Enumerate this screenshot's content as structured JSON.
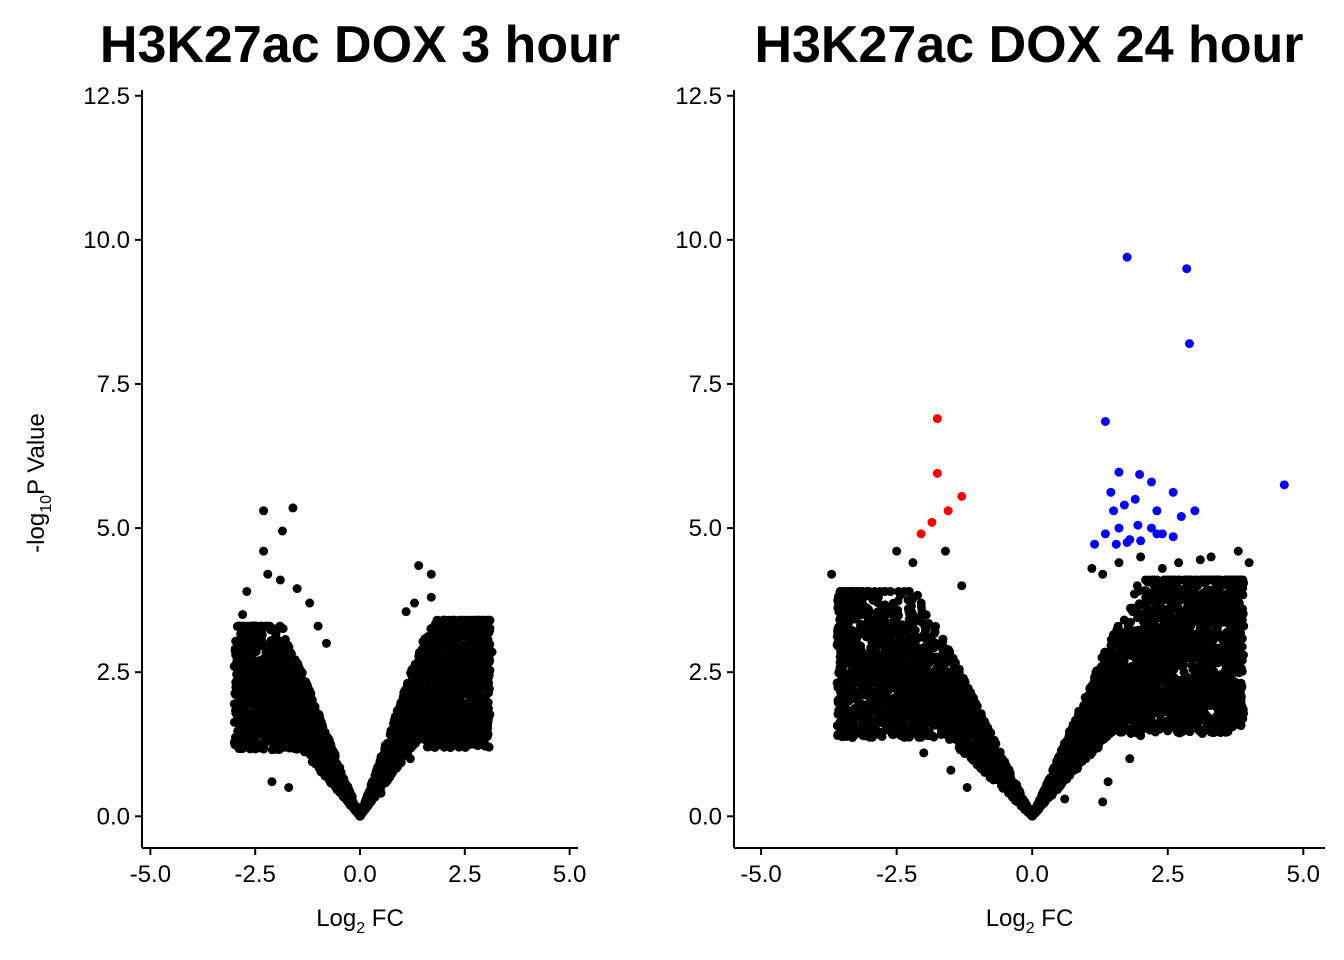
{
  "figure": {
    "ylabel_prefix": "-log",
    "ylabel_sub": "10",
    "ylabel_suffix": "P Value"
  },
  "colors": {
    "points": "#000000",
    "up": "#0000ff",
    "down": "#ff0000",
    "axis": "#000000"
  },
  "chart_data": [
    {
      "type": "scatter",
      "title": "H3K27ac DOX 3 hour",
      "xlabel_prefix": "Log",
      "xlabel_sub": "2",
      "xlabel_suffix": " FC",
      "xlim": [
        -5.2,
        5.2
      ],
      "ylim": [
        -0.55,
        12.6
      ],
      "xticks": [
        -5,
        -2.5,
        0,
        2.5,
        5
      ],
      "xtick_labels": [
        "-5.0",
        "-2.5",
        "0.0",
        "2.5",
        "5.0"
      ],
      "yticks": [
        0,
        2.5,
        5,
        7.5,
        10,
        12.5
      ],
      "ytick_labels": [
        "0.0",
        "2.5",
        "5.0",
        "7.5",
        "10.0",
        "12.5"
      ],
      "grid": false,
      "series": [
        {
          "color": "#000000",
          "points": [
            [
              -2.3,
              5.3
            ],
            [
              -1.6,
              5.35
            ],
            [
              -1.85,
              4.95
            ],
            [
              -2.3,
              4.6
            ],
            [
              -2.2,
              4.2
            ],
            [
              -1.9,
              4.1
            ],
            [
              -1.5,
              3.95
            ],
            [
              -2.7,
              3.9
            ],
            [
              -2.8,
              3.5
            ],
            [
              -2.6,
              3.3
            ],
            [
              -2.9,
              2.9
            ],
            [
              -3.0,
              2.6
            ],
            [
              -2.95,
              2.3
            ],
            [
              -3.0,
              1.95
            ],
            [
              -2.8,
              1.6
            ],
            [
              -2.5,
              1.2
            ],
            [
              -2.1,
              0.6
            ],
            [
              -1.7,
              0.5
            ],
            [
              -1.0,
              3.3
            ],
            [
              -0.8,
              3.0
            ],
            [
              -1.2,
              3.7
            ],
            [
              1.4,
              4.35
            ],
            [
              1.7,
              4.2
            ],
            [
              1.3,
              3.7
            ],
            [
              1.1,
              3.55
            ],
            [
              1.7,
              3.8
            ],
            [
              1.9,
              3.2
            ],
            [
              2.0,
              3.1
            ],
            [
              2.3,
              2.9
            ],
            [
              2.6,
              2.75
            ],
            [
              2.75,
              2.6
            ],
            [
              3.15,
              2.85
            ],
            [
              2.95,
              2.7
            ],
            [
              2.6,
              2.2
            ],
            [
              2.8,
              2.0
            ],
            [
              2.3,
              1.8
            ],
            [
              2.1,
              1.5
            ],
            [
              1.8,
              1.2
            ],
            [
              1.2,
              1.0
            ],
            [
              0.5,
              0.4
            ]
          ]
        }
      ],
      "cloud": [
        {
          "x_min": -3.0,
          "x_max": 0,
          "y_peak": 3.3,
          "rate": 1.1,
          "n": 1600
        },
        {
          "x_min": 0,
          "x_max": 3.1,
          "y_peak": 3.4,
          "rate": 1.25,
          "n": 1700
        }
      ]
    },
    {
      "type": "scatter",
      "title": "H3K27ac DOX 24 hour",
      "xlabel_prefix": "Log",
      "xlabel_sub": "2",
      "xlabel_suffix": " FC",
      "xlim": [
        -5.5,
        5.4
      ],
      "ylim": [
        -0.55,
        12.6
      ],
      "xticks": [
        -5,
        -2.5,
        0,
        2.5,
        5
      ],
      "xtick_labels": [
        "-5.0",
        "-2.5",
        "0.0",
        "2.5",
        "5.0"
      ],
      "yticks": [
        0,
        2.5,
        5,
        7.5,
        10,
        12.5
      ],
      "ytick_labels": [
        "0.0",
        "2.5",
        "5.0",
        "7.5",
        "10.0",
        "12.5"
      ],
      "grid": false,
      "series": [
        {
          "color": "#000000",
          "points": [
            [
              -3.7,
              4.2
            ],
            [
              -3.4,
              3.85
            ],
            [
              -3.3,
              3.2
            ],
            [
              -3.0,
              3.1
            ],
            [
              -2.5,
              4.6
            ],
            [
              -2.2,
              4.4
            ],
            [
              -1.6,
              4.6
            ],
            [
              -1.3,
              4.0
            ],
            [
              -2.8,
              2.8
            ],
            [
              -3.1,
              2.4
            ],
            [
              -2.9,
              2.0
            ],
            [
              -2.4,
              1.6
            ],
            [
              -2.0,
              1.1
            ],
            [
              -1.5,
              0.8
            ],
            [
              -1.2,
              0.5
            ],
            [
              1.1,
              4.3
            ],
            [
              1.3,
              4.2
            ],
            [
              1.6,
              4.4
            ],
            [
              2.0,
              4.5
            ],
            [
              2.4,
              4.3
            ],
            [
              2.7,
              4.4
            ],
            [
              3.1,
              4.45
            ],
            [
              3.3,
              4.5
            ],
            [
              3.8,
              4.6
            ],
            [
              4.0,
              4.4
            ],
            [
              3.7,
              3.9
            ],
            [
              3.5,
              3.6
            ],
            [
              3.9,
              3.3
            ],
            [
              2.9,
              3.5
            ],
            [
              3.0,
              3.0
            ],
            [
              3.2,
              2.7
            ],
            [
              2.8,
              2.5
            ],
            [
              3.0,
              2.3
            ],
            [
              2.6,
              2.0
            ],
            [
              2.2,
              1.8
            ],
            [
              2.0,
              1.4
            ],
            [
              1.8,
              1.0
            ],
            [
              1.4,
              0.6
            ],
            [
              1.3,
              0.25
            ],
            [
              0.6,
              0.3
            ]
          ]
        },
        {
          "color": "#ff0000",
          "points": [
            [
              -1.75,
              6.9
            ],
            [
              -1.75,
              5.95
            ],
            [
              -1.3,
              5.55
            ],
            [
              -1.55,
              5.3
            ],
            [
              -1.85,
              5.1
            ],
            [
              -2.05,
              4.9
            ]
          ]
        },
        {
          "color": "#0000ff",
          "points": [
            [
              1.75,
              9.7
            ],
            [
              2.85,
              9.5
            ],
            [
              2.9,
              8.2
            ],
            [
              1.35,
              6.85
            ],
            [
              4.65,
              5.75
            ],
            [
              1.6,
              5.97
            ],
            [
              1.98,
              5.93
            ],
            [
              2.2,
              5.8
            ],
            [
              2.6,
              5.62
            ],
            [
              1.45,
              5.62
            ],
            [
              1.9,
              5.5
            ],
            [
              1.7,
              5.4
            ],
            [
              2.3,
              5.3
            ],
            [
              2.75,
              5.2
            ],
            [
              3.0,
              5.3
            ],
            [
              1.5,
              5.3
            ],
            [
              1.95,
              5.05
            ],
            [
              2.2,
              5.0
            ],
            [
              1.6,
              5.0
            ],
            [
              1.35,
              4.9
            ],
            [
              2.4,
              4.9
            ],
            [
              2.6,
              4.85
            ],
            [
              1.8,
              4.8
            ],
            [
              2.0,
              4.78
            ],
            [
              1.55,
              4.72
            ],
            [
              1.15,
              4.72
            ],
            [
              2.3,
              4.9
            ],
            [
              1.75,
              4.75
            ]
          ]
        }
      ],
      "cloud": [
        {
          "x_min": -3.6,
          "x_max": 0,
          "y_peak": 3.9,
          "rate": 1.15,
          "n": 2000
        },
        {
          "x_min": 0,
          "x_max": 3.9,
          "y_peak": 4.1,
          "rate": 1.3,
          "n": 2300
        }
      ]
    }
  ]
}
